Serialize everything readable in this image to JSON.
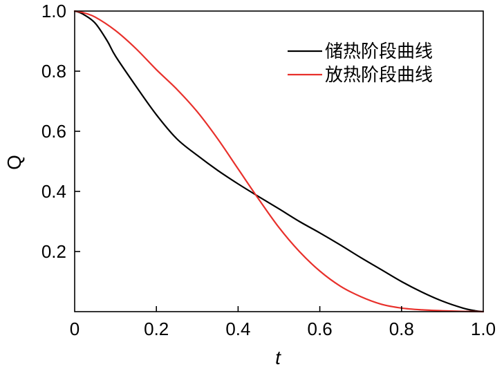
{
  "chart_data": {
    "type": "line",
    "title": "",
    "xlabel": "t",
    "ylabel": "Q",
    "xlim": [
      0,
      1.0
    ],
    "ylim": [
      0,
      1.0
    ],
    "x_ticks": [
      {
        "value": 0,
        "label": "0"
      },
      {
        "value": 0.2,
        "label": "0.2"
      },
      {
        "value": 0.4,
        "label": "0.4"
      },
      {
        "value": 0.6,
        "label": "0.6"
      },
      {
        "value": 0.8,
        "label": "0.8"
      },
      {
        "value": 1.0,
        "label": "1.0"
      }
    ],
    "y_ticks": [
      {
        "value": 0.2,
        "label": "0.2"
      },
      {
        "value": 0.4,
        "label": "0.4"
      },
      {
        "value": 0.6,
        "label": "0.6"
      },
      {
        "value": 0.8,
        "label": "0.8"
      },
      {
        "value": 1.0,
        "label": "1.0"
      }
    ],
    "grid": false,
    "legend_position": "top-right",
    "series": [
      {
        "name": "储热阶段曲线",
        "color": "#000000",
        "x": [
          0,
          0.02,
          0.05,
          0.08,
          0.1,
          0.15,
          0.2,
          0.25,
          0.3,
          0.35,
          0.4,
          0.45,
          0.5,
          0.55,
          0.6,
          0.65,
          0.7,
          0.75,
          0.8,
          0.85,
          0.9,
          0.95,
          0.98,
          1.0
        ],
        "values": [
          1.0,
          0.99,
          0.96,
          0.9,
          0.85,
          0.75,
          0.655,
          0.575,
          0.52,
          0.47,
          0.425,
          0.383,
          0.342,
          0.3,
          0.262,
          0.222,
          0.18,
          0.14,
          0.1,
          0.065,
          0.035,
          0.012,
          0.003,
          0.0
        ]
      },
      {
        "name": "放热阶段曲线",
        "color": "#e8302b",
        "x": [
          0,
          0.02,
          0.05,
          0.1,
          0.15,
          0.2,
          0.25,
          0.3,
          0.35,
          0.4,
          0.45,
          0.5,
          0.55,
          0.6,
          0.65,
          0.7,
          0.75,
          0.8,
          0.85,
          0.9,
          0.95,
          1.0
        ],
        "values": [
          1.0,
          0.995,
          0.98,
          0.935,
          0.875,
          0.805,
          0.74,
          0.665,
          0.575,
          0.475,
          0.375,
          0.28,
          0.2,
          0.135,
          0.085,
          0.05,
          0.025,
          0.012,
          0.006,
          0.003,
          0.001,
          0.0
        ]
      }
    ]
  }
}
